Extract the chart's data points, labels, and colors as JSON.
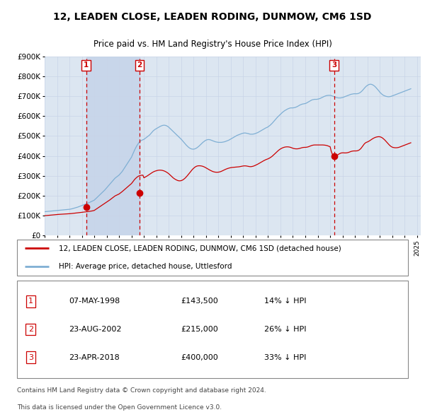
{
  "title": "12, LEADEN CLOSE, LEADEN RODING, DUNMOW, CM6 1SD",
  "subtitle": "Price paid vs. HM Land Registry's House Price Index (HPI)",
  "ylim": [
    0,
    900000
  ],
  "yticks": [
    0,
    100000,
    200000,
    300000,
    400000,
    500000,
    600000,
    700000,
    800000,
    900000
  ],
  "ytick_labels": [
    "£0",
    "£100K",
    "£200K",
    "£300K",
    "£400K",
    "£500K",
    "£600K",
    "£700K",
    "£800K",
    "£900K"
  ],
  "xlim_start": 1995.0,
  "xlim_end": 2025.3,
  "grid_color": "#c8d4e8",
  "plot_bg_color": "#dce6f1",
  "red_line_color": "#cc0000",
  "blue_line_color": "#7fafd4",
  "sale_marker_color": "#cc0000",
  "vline_color": "#cc0000",
  "shade_color": "#c0d0e8",
  "legend_label_red": "12, LEADEN CLOSE, LEADEN RODING, DUNMOW, CM6 1SD (detached house)",
  "legend_label_blue": "HPI: Average price, detached house, Uttlesford",
  "sales": [
    {
      "num": 1,
      "date_x": 1998.35,
      "price": 143500,
      "label": "07-MAY-1998",
      "price_str": "£143,500",
      "pct": "14% ↓ HPI"
    },
    {
      "num": 2,
      "date_x": 2002.64,
      "price": 215000,
      "label": "23-AUG-2002",
      "price_str": "£215,000",
      "pct": "26% ↓ HPI"
    },
    {
      "num": 3,
      "date_x": 2018.31,
      "price": 400000,
      "label": "23-APR-2018",
      "price_str": "£400,000",
      "pct": "33% ↓ HPI"
    }
  ],
  "footer_line1": "Contains HM Land Registry data © Crown copyright and database right 2024.",
  "footer_line2": "This data is licensed under the Open Government Licence v3.0.",
  "hpi_y_vals": [
    120000,
    120500,
    121000,
    121500,
    122000,
    122500,
    123000,
    123500,
    124000,
    124500,
    125000,
    125500,
    126000,
    126500,
    127000,
    127500,
    128000,
    128500,
    129000,
    129500,
    130000,
    130500,
    131000,
    131500,
    132000,
    133000,
    134000,
    135500,
    137000,
    138500,
    140000,
    141500,
    143000,
    145000,
    147000,
    149000,
    151000,
    153000,
    155000,
    157000,
    159000,
    161000,
    163000,
    165500,
    168000,
    170500,
    173000,
    175500,
    178000,
    183000,
    188000,
    193000,
    198000,
    203000,
    208000,
    213000,
    218000,
    223000,
    228000,
    234000,
    240000,
    246000,
    252000,
    258000,
    264000,
    270000,
    276000,
    282000,
    288000,
    292000,
    296000,
    300000,
    304000,
    310000,
    316000,
    322000,
    330000,
    338000,
    346000,
    354000,
    362000,
    370000,
    378000,
    386000,
    394000,
    406000,
    418000,
    430000,
    440000,
    450000,
    458000,
    466000,
    472000,
    476000,
    479000,
    481000,
    483000,
    487000,
    491000,
    495000,
    499000,
    503000,
    508000,
    514000,
    520000,
    526000,
    530000,
    534000,
    537000,
    540000,
    543000,
    546000,
    549000,
    551000,
    553000,
    554000,
    554000,
    553000,
    551000,
    548000,
    544000,
    539000,
    534000,
    529000,
    524000,
    519000,
    514000,
    509000,
    504000,
    499000,
    494000,
    489000,
    484000,
    478000,
    472000,
    466000,
    460000,
    454000,
    449000,
    444000,
    440000,
    437000,
    435000,
    434000,
    434000,
    435000,
    437000,
    440000,
    444000,
    448000,
    453000,
    458000,
    463000,
    468000,
    472000,
    476000,
    479000,
    481000,
    482000,
    482000,
    481000,
    479000,
    477000,
    475000,
    473000,
    471000,
    470000,
    469000,
    468000,
    468000,
    468000,
    468000,
    469000,
    470000,
    471000,
    473000,
    475000,
    477000,
    479000,
    482000,
    485000,
    488000,
    491000,
    494000,
    497000,
    500000,
    503000,
    505000,
    507000,
    509000,
    511000,
    513000,
    514000,
    515000,
    515000,
    514000,
    513000,
    512000,
    510000,
    509000,
    509000,
    509000,
    510000,
    511000,
    513000,
    515000,
    517000,
    520000,
    523000,
    526000,
    529000,
    532000,
    535000,
    538000,
    541000,
    543000,
    546000,
    550000,
    554000,
    559000,
    564000,
    570000,
    576000,
    582000,
    588000,
    594000,
    599000,
    604000,
    609000,
    614000,
    619000,
    623000,
    627000,
    630000,
    633000,
    636000,
    638000,
    640000,
    641000,
    641000,
    641000,
    642000,
    643000,
    645000,
    647000,
    650000,
    653000,
    656000,
    658000,
    660000,
    661000,
    662000,
    663000,
    665000,
    668000,
    671000,
    674000,
    677000,
    680000,
    682000,
    683000,
    684000,
    684000,
    684000,
    685000,
    686000,
    688000,
    690000,
    693000,
    695000,
    698000,
    700000,
    702000,
    703000,
    704000,
    704000,
    704000,
    703000,
    701000,
    699000,
    697000,
    695000,
    693000,
    692000,
    691000,
    691000,
    691000,
    692000,
    693000,
    695000,
    697000,
    699000,
    701000,
    703000,
    705000,
    707000,
    709000,
    710000,
    711000,
    712000,
    712000,
    712000,
    712000,
    713000,
    715000,
    718000,
    722000,
    727000,
    733000,
    739000,
    745000,
    750000,
    754000,
    757000,
    759000,
    760000,
    759000,
    757000,
    754000,
    750000,
    745000,
    739000,
    733000,
    727000,
    720000,
    715000,
    710000,
    706000,
    703000,
    701000,
    699000,
    698000,
    697000,
    697000,
    698000,
    699000,
    701000,
    703000,
    705000,
    707000,
    709000,
    711000,
    713000,
    715000,
    717000,
    719000,
    721000,
    723000,
    725000,
    727000,
    729000,
    731000,
    733000,
    735000,
    737000
  ],
  "red_y_vals": [
    100000,
    100500,
    101000,
    101500,
    102000,
    102500,
    103000,
    103500,
    104000,
    104500,
    105000,
    105500,
    106000,
    106300,
    106600,
    106900,
    107200,
    107500,
    107800,
    108100,
    108400,
    108700,
    109000,
    109300,
    109600,
    110200,
    110800,
    111400,
    112000,
    112600,
    113200,
    113800,
    114400,
    115000,
    115600,
    116200,
    116800,
    117400,
    118000,
    118600,
    119200,
    119800,
    120600,
    121400,
    122200,
    123000,
    124000,
    125000,
    126500,
    130000,
    133500,
    137000,
    140500,
    144000,
    147500,
    151000,
    154500,
    158000,
    161500,
    165000,
    168500,
    172000,
    175500,
    179000,
    183000,
    187000,
    191000,
    195000,
    199000,
    201500,
    204000,
    206500,
    209000,
    213000,
    217000,
    221000,
    225500,
    230000,
    234500,
    239000,
    243500,
    248000,
    252500,
    257000,
    261500,
    268000,
    275000,
    282000,
    287000,
    292000,
    296000,
    299000,
    301000,
    302500,
    303000,
    303500,
    290000,
    293000,
    296000,
    299000,
    302500,
    306000,
    309500,
    313000,
    316500,
    319500,
    322000,
    324000,
    325500,
    327000,
    328000,
    328500,
    328500,
    328000,
    327000,
    325500,
    323500,
    321000,
    318000,
    314500,
    310500,
    306000,
    301000,
    296000,
    291000,
    287000,
    283500,
    280500,
    278000,
    276000,
    275000,
    275000,
    276000,
    278000,
    281000,
    285000,
    289500,
    295000,
    301000,
    307500,
    314000,
    320500,
    327000,
    333000,
    338000,
    342500,
    346000,
    348500,
    350000,
    350500,
    350500,
    350000,
    349000,
    347500,
    345500,
    343000,
    340000,
    337000,
    334000,
    331000,
    328000,
    325500,
    323000,
    321000,
    319500,
    318500,
    318000,
    318000,
    318500,
    319500,
    321000,
    323000,
    325500,
    328000,
    330500,
    333000,
    335000,
    337000,
    338500,
    340000,
    341000,
    342000,
    342500,
    343000,
    343500,
    344000,
    344500,
    345000,
    345500,
    346500,
    347500,
    348500,
    349500,
    350000,
    350000,
    349500,
    348500,
    347500,
    346500,
    346000,
    346500,
    347500,
    349000,
    351000,
    353500,
    356000,
    358500,
    361500,
    364500,
    367500,
    370500,
    373500,
    376500,
    379000,
    381500,
    383500,
    385500,
    388000,
    391000,
    394500,
    398500,
    403000,
    408000,
    413000,
    418000,
    423000,
    427500,
    431500,
    435000,
    438000,
    440500,
    442500,
    444000,
    445000,
    445500,
    445500,
    445000,
    444000,
    442500,
    440500,
    438500,
    437000,
    436000,
    435500,
    435500,
    436000,
    437000,
    438500,
    440000,
    441500,
    442500,
    443000,
    443000,
    443500,
    444500,
    446000,
    448000,
    450000,
    452000,
    453500,
    454500,
    455000,
    455000,
    455000,
    455000,
    455000,
    455000,
    455000,
    455000,
    455000,
    454500,
    454000,
    453000,
    452000,
    450000,
    448000,
    446000,
    425000,
    410000,
    400000,
    396000,
    398000,
    401000,
    404000,
    407500,
    411000,
    413500,
    415000,
    415500,
    415500,
    415000,
    415000,
    415500,
    416500,
    418000,
    420000,
    422000,
    423500,
    424500,
    425000,
    425000,
    425000,
    425500,
    427000,
    429500,
    433500,
    439000,
    446000,
    453500,
    460000,
    465000,
    468000,
    470000,
    472500,
    475500,
    479000,
    482500,
    486000,
    489000,
    491500,
    493500,
    495000,
    496000,
    496500,
    496000,
    494500,
    492000,
    488500,
    484000,
    479000,
    473500,
    467500,
    461500,
    456000,
    451000,
    447000,
    444000,
    442500,
    441500,
    441000,
    441000,
    441500,
    442500,
    444000,
    446000,
    448000,
    450000,
    452000,
    454000,
    456000,
    458000,
    460000,
    462000,
    464000,
    466000
  ]
}
